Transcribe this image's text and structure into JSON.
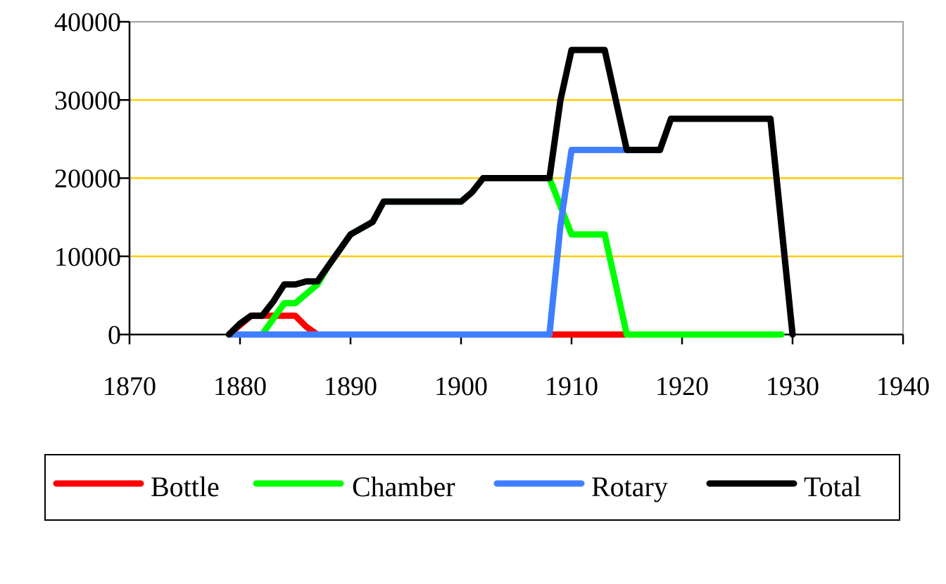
{
  "chart_data": {
    "type": "line",
    "title": "",
    "xlabel": "",
    "ylabel": "",
    "xlim": [
      1870,
      1940
    ],
    "ylim": [
      0,
      40000
    ],
    "x_ticks": [
      1870,
      1880,
      1890,
      1900,
      1910,
      1920,
      1930,
      1940
    ],
    "y_ticks": [
      0,
      10000,
      20000,
      30000,
      40000
    ],
    "x_tick_labels": [
      "1870",
      "1880",
      "1890",
      "1900",
      "1910",
      "1920",
      "1930",
      "1940"
    ],
    "y_tick_labels": [
      "0",
      "10000",
      "20000",
      "30000",
      "40000"
    ],
    "grid": "horizontal",
    "legend_position": "bottom",
    "series": [
      {
        "name": "Bottle",
        "color": "#ff0000",
        "points": [
          [
            1879,
            0
          ],
          [
            1880,
            1200
          ],
          [
            1881,
            2400
          ],
          [
            1884,
            2400
          ],
          [
            1885,
            2400
          ],
          [
            1886,
            1000
          ],
          [
            1887,
            0
          ],
          [
            1915,
            0
          ]
        ]
      },
      {
        "name": "Chamber",
        "color": "#00ff00",
        "points": [
          [
            1882,
            0
          ],
          [
            1884,
            4000
          ],
          [
            1885,
            4000
          ],
          [
            1887,
            6400
          ],
          [
            1888,
            8800
          ],
          [
            1889,
            10800
          ],
          [
            1890,
            12800
          ],
          [
            1892,
            14400
          ],
          [
            1893,
            17000
          ],
          [
            1900,
            17000
          ],
          [
            1901,
            18200
          ],
          [
            1902,
            20000
          ],
          [
            1908,
            20000
          ],
          [
            1910,
            12800
          ],
          [
            1913,
            12800
          ],
          [
            1914,
            6400
          ],
          [
            1915,
            0
          ],
          [
            1929,
            0
          ]
        ]
      },
      {
        "name": "Rotary",
        "color": "#3f7fff",
        "points": [
          [
            1879,
            0
          ],
          [
            1908,
            0
          ],
          [
            1909,
            14000
          ],
          [
            1910,
            23600
          ],
          [
            1918,
            23600
          ],
          [
            1919,
            27600
          ],
          [
            1928,
            27600
          ],
          [
            1930,
            0
          ]
        ]
      },
      {
        "name": "Total",
        "color": "#000000",
        "points": [
          [
            1879,
            0
          ],
          [
            1880,
            1400
          ],
          [
            1881,
            2400
          ],
          [
            1882,
            2400
          ],
          [
            1883,
            4200
          ],
          [
            1884,
            6400
          ],
          [
            1885,
            6400
          ],
          [
            1886,
            6800
          ],
          [
            1887,
            6800
          ],
          [
            1888,
            8800
          ],
          [
            1889,
            10800
          ],
          [
            1890,
            12800
          ],
          [
            1892,
            14400
          ],
          [
            1893,
            17000
          ],
          [
            1900,
            17000
          ],
          [
            1901,
            18200
          ],
          [
            1902,
            20000
          ],
          [
            1908,
            20000
          ],
          [
            1909,
            30000
          ],
          [
            1910,
            36400
          ],
          [
            1913,
            36400
          ],
          [
            1914,
            30000
          ],
          [
            1915,
            23600
          ],
          [
            1918,
            23600
          ],
          [
            1919,
            27600
          ],
          [
            1928,
            27600
          ],
          [
            1930,
            0
          ]
        ]
      }
    ]
  }
}
